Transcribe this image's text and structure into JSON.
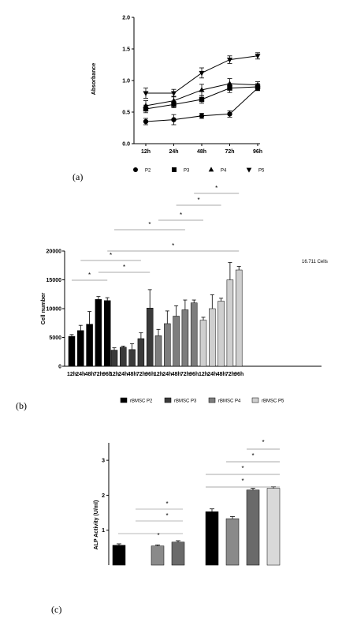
{
  "panel_labels": [
    "(a)",
    "(b)",
    "(c)"
  ],
  "chart_data": [
    {
      "type": "line",
      "ylabel": "Absorbance",
      "xlabel": "",
      "ylim": [
        0.0,
        2.0
      ],
      "yticks": [
        "0.0",
        "0.5",
        "1.0",
        "1.5",
        "2.0"
      ],
      "categories": [
        "12h",
        "24h",
        "48h",
        "72h",
        "96h"
      ],
      "legend_position": "bottom",
      "series": [
        {
          "name": "P2",
          "marker": "circle",
          "values": [
            0.35,
            0.38,
            0.44,
            0.47,
            0.88
          ],
          "errors": [
            0.05,
            0.08,
            0.04,
            0.05,
            0.04
          ]
        },
        {
          "name": "P3",
          "marker": "square",
          "values": [
            0.55,
            0.62,
            0.7,
            0.88,
            0.9
          ],
          "errors": [
            0.06,
            0.05,
            0.06,
            0.07,
            0.05
          ]
        },
        {
          "name": "P4",
          "marker": "triangle-up",
          "values": [
            0.6,
            0.68,
            0.85,
            0.95,
            0.93
          ],
          "errors": [
            0.08,
            0.07,
            0.09,
            0.08,
            0.05
          ]
        },
        {
          "name": "P5",
          "marker": "triangle-down",
          "values": [
            0.8,
            0.8,
            1.12,
            1.33,
            1.39
          ],
          "errors": [
            0.08,
            0.06,
            0.08,
            0.06,
            0.05
          ]
        }
      ]
    },
    {
      "type": "bar",
      "ylabel": "Cell number",
      "ylim": [
        0,
        20000
      ],
      "yticks": [
        "0",
        "5000",
        "10000",
        "15000",
        "20000"
      ],
      "categories": [
        "12h",
        "24h",
        "48h",
        "72h",
        "96h"
      ],
      "legend_position": "bottom",
      "annotation": "16.711 Cells",
      "significance_marker": "*",
      "groups": [
        {
          "name": "rBMSC P2",
          "color": "#000000",
          "values": [
            5200,
            6200,
            7300,
            11600,
            11400
          ],
          "errors": [
            300,
            900,
            2200,
            500,
            500
          ]
        },
        {
          "name": "rBMSC P3",
          "color": "#3a3a3a",
          "values": [
            2800,
            3300,
            2900,
            4800,
            10100
          ],
          "errors": [
            400,
            200,
            1000,
            1000,
            3200
          ]
        },
        {
          "name": "rBMSC P4",
          "color": "#7d7d7d",
          "values": [
            5300,
            7400,
            8700,
            9800,
            11000
          ],
          "errors": [
            1100,
            2200,
            1800,
            1700,
            500
          ]
        },
        {
          "name": "rBMSC P5",
          "color": "#cfcfcf",
          "values": [
            8000,
            10000,
            11300,
            15000,
            16711
          ],
          "errors": [
            500,
            2400,
            500,
            3000,
            600
          ]
        }
      ]
    },
    {
      "type": "bar",
      "ylabel": "ALP Activity (U/ml)",
      "ylim": [
        0,
        3.5
      ],
      "yticks": [
        "1",
        "2",
        "3"
      ],
      "significance_marker": "*",
      "groups": [
        {
          "color": "#000000",
          "values": [
            0.57,
            1.53
          ],
          "errors": [
            0.04,
            0.08
          ]
        },
        {
          "color": "#8a8a8a",
          "values": [
            0.55,
            1.33
          ],
          "errors": [
            0.03,
            0.06
          ]
        },
        {
          "color": "#6a6a6a",
          "values": [
            0.66,
            2.15
          ],
          "errors": [
            0.04,
            0.05
          ]
        },
        {
          "color": "#d9d9d9",
          "values": [
            0.0,
            2.2
          ],
          "errors": [
            0.0,
            0.04
          ]
        }
      ]
    }
  ]
}
